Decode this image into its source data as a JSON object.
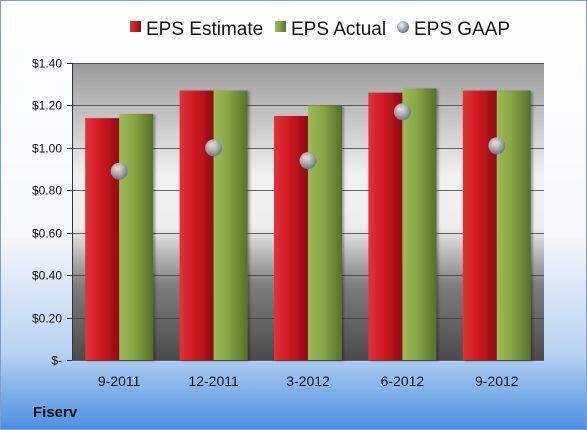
{
  "chart_data": {
    "type": "bar",
    "categories": [
      "9-2011",
      "12-2011",
      "3-2012",
      "6-2012",
      "9-2012"
    ],
    "series": [
      {
        "name": "EPS Estimate",
        "type": "bar",
        "color": "#c0121b",
        "values": [
          1.14,
          1.27,
          1.15,
          1.26,
          1.27
        ]
      },
      {
        "name": "EPS Actual",
        "type": "bar",
        "color": "#7d9a3a",
        "values": [
          1.16,
          1.27,
          1.2,
          1.28,
          1.27
        ]
      },
      {
        "name": "EPS GAAP",
        "type": "scatter",
        "color": "#9aa4ae",
        "values": [
          0.89,
          1.0,
          0.94,
          1.17,
          1.01
        ]
      }
    ],
    "ylim": [
      0,
      1.4
    ],
    "yticks": [
      0,
      0.2,
      0.4,
      0.6,
      0.8,
      1.0,
      1.2,
      1.4
    ],
    "ytick_labels": [
      "$-",
      "$0.20",
      "$0.40",
      "$0.60",
      "$0.80",
      "$1.00",
      "$1.20",
      "$1.40"
    ],
    "grid": true,
    "legend_position": "top"
  },
  "company": "Fiserv",
  "colors": {
    "background_top": "#ffffff",
    "background_bottom": "#4a8ee0",
    "plot_top": "#9b9b9b",
    "plot_mid": "#eeeeee"
  }
}
